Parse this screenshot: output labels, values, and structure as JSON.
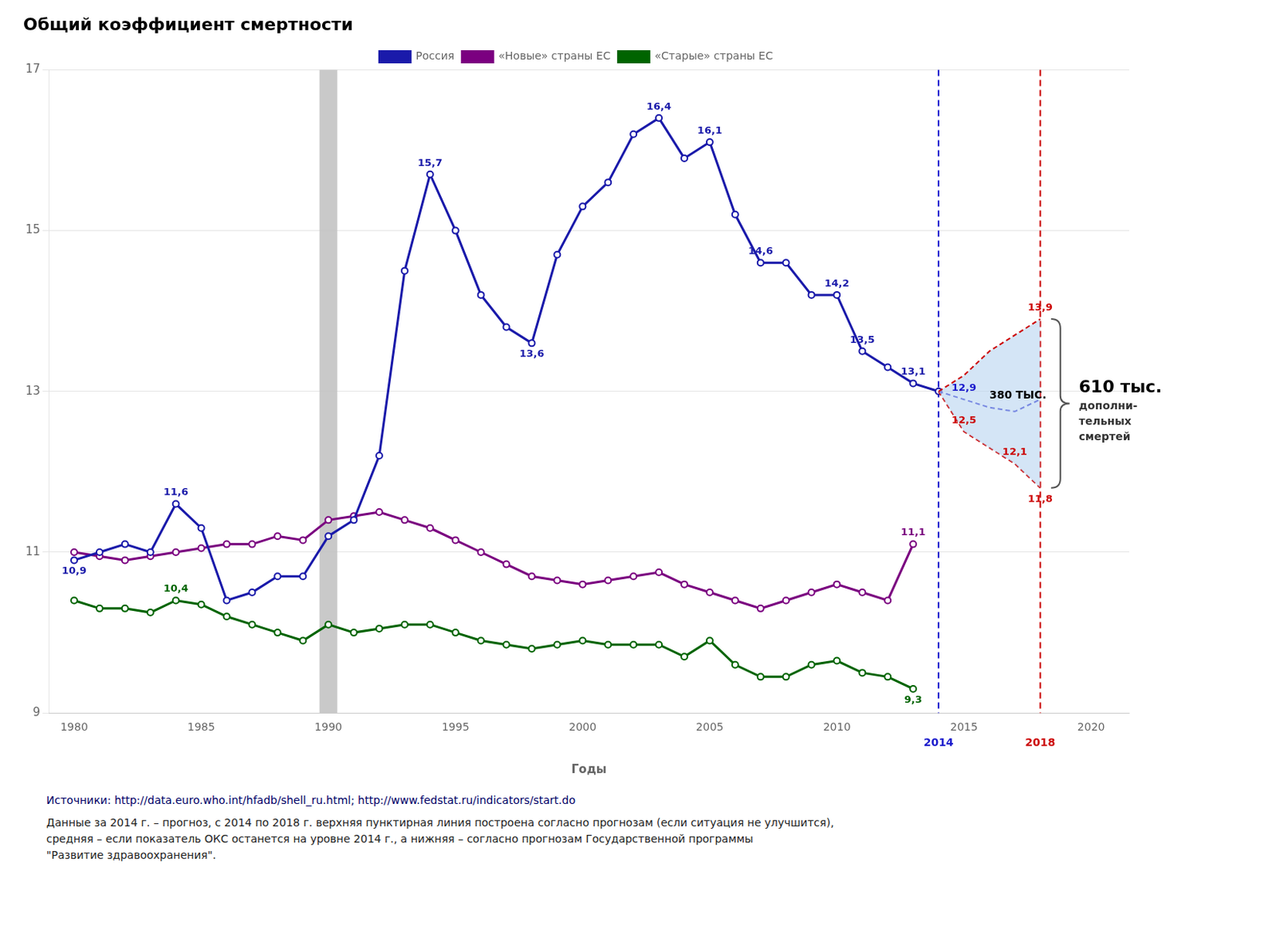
{
  "chart_data": {
    "type": "line",
    "title": "Общий коэффициент смертности",
    "x_label": "Годы",
    "xlim": [
      1979,
      2021.5
    ],
    "ylim": [
      9,
      17
    ],
    "xticks": [
      1980,
      1985,
      1990,
      1995,
      2000,
      2005,
      2010,
      2015,
      2020
    ],
    "yticks": [
      9,
      11,
      13,
      15,
      17
    ],
    "grid": "y",
    "legend": "top",
    "series": [
      {
        "name": "Россия",
        "color": "#1a1aaa",
        "marker": "circle",
        "line_style": "solid",
        "x": [
          1980,
          1981,
          1982,
          1983,
          1984,
          1985,
          1986,
          1987,
          1988,
          1989,
          1990,
          1991,
          1992,
          1993,
          1994,
          1995,
          1996,
          1997,
          1998,
          1999,
          2000,
          2001,
          2002,
          2003,
          2004,
          2005,
          2006,
          2007,
          2008,
          2009,
          2010,
          2011,
          2012,
          2013,
          2014
        ],
        "values": [
          10.9,
          11.0,
          11.1,
          11.0,
          11.6,
          11.3,
          10.4,
          10.5,
          10.7,
          10.7,
          11.2,
          11.4,
          12.2,
          14.5,
          15.7,
          15.0,
          14.2,
          13.8,
          13.6,
          14.7,
          15.3,
          15.6,
          16.2,
          16.4,
          15.9,
          16.1,
          15.2,
          14.6,
          14.6,
          14.2,
          14.2,
          13.5,
          13.3,
          13.1,
          13.0
        ],
        "value_labels": [
          "10,9",
          null,
          null,
          null,
          "11,6",
          null,
          null,
          null,
          null,
          null,
          null,
          null,
          null,
          null,
          "15,7",
          null,
          null,
          null,
          "13,6",
          null,
          null,
          null,
          null,
          "16,4",
          null,
          "16,1",
          null,
          "14,6",
          null,
          null,
          "14,2",
          "13,5",
          null,
          "13,1",
          null
        ]
      },
      {
        "name": "«Новые» страны ЕС",
        "color": "#7B0080",
        "marker": "circle",
        "line_style": "solid",
        "x": [
          1980,
          1981,
          1982,
          1983,
          1984,
          1985,
          1986,
          1987,
          1988,
          1989,
          1990,
          1991,
          1992,
          1993,
          1994,
          1995,
          1996,
          1997,
          1998,
          1999,
          2000,
          2001,
          2002,
          2003,
          2004,
          2005,
          2006,
          2007,
          2008,
          2009,
          2010,
          2011,
          2012,
          2013
        ],
        "values": [
          11.0,
          10.95,
          10.9,
          10.95,
          11.0,
          11.05,
          11.1,
          11.1,
          11.2,
          11.15,
          11.4,
          11.45,
          11.5,
          11.4,
          11.3,
          11.15,
          11.0,
          10.85,
          10.7,
          10.65,
          10.6,
          10.65,
          10.7,
          10.75,
          10.6,
          10.5,
          10.4,
          10.3,
          10.4,
          10.5,
          10.6,
          10.5,
          10.4,
          11.1
        ],
        "value_labels": [
          null,
          null,
          null,
          null,
          null,
          null,
          null,
          null,
          null,
          null,
          null,
          null,
          null,
          null,
          null,
          null,
          null,
          null,
          null,
          null,
          null,
          null,
          null,
          null,
          null,
          null,
          null,
          null,
          null,
          null,
          null,
          null,
          null,
          "11,1"
        ]
      },
      {
        "name": "«Старые» страны ЕС",
        "color": "#006400",
        "marker": "circle",
        "line_style": "solid",
        "x": [
          1980,
          1981,
          1982,
          1983,
          1984,
          1985,
          1986,
          1987,
          1988,
          1989,
          1990,
          1991,
          1992,
          1993,
          1994,
          1995,
          1996,
          1997,
          1998,
          1999,
          2000,
          2001,
          2002,
          2003,
          2004,
          2005,
          2006,
          2007,
          2008,
          2009,
          2010,
          2011,
          2012,
          2013
        ],
        "values": [
          10.4,
          10.3,
          10.3,
          10.25,
          10.4,
          10.35,
          10.2,
          10.1,
          10.0,
          9.9,
          10.1,
          10.0,
          10.05,
          10.1,
          10.1,
          10.0,
          9.9,
          9.85,
          9.8,
          9.85,
          9.9,
          9.85,
          9.85,
          9.85,
          9.7,
          9.9,
          9.6,
          9.45,
          9.45,
          9.6,
          9.65,
          9.5,
          9.45,
          9.3
        ],
        "value_labels": [
          null,
          null,
          null,
          null,
          "10,4",
          null,
          null,
          null,
          null,
          null,
          null,
          null,
          null,
          null,
          null,
          null,
          null,
          null,
          null,
          null,
          null,
          null,
          null,
          null,
          null,
          null,
          null,
          null,
          null,
          null,
          null,
          null,
          null,
          "9,3"
        ]
      },
      {
        "color": "#CC0000",
        "marker": "none",
        "line_style": "dashed",
        "x": [
          2014,
          2015,
          2016,
          2017,
          2018
        ],
        "values": [
          13.0,
          13.2,
          13.5,
          13.7,
          13.9
        ],
        "value_labels": [
          null,
          null,
          null,
          null,
          "13,9"
        ]
      },
      {
        "color": "#1a1aCC",
        "marker": "none",
        "line_style": "dashed",
        "x": [
          2014,
          2015,
          2016,
          2017,
          2018
        ],
        "values": [
          13.0,
          12.9,
          12.8,
          12.75,
          12.9
        ],
        "value_labels": [
          null,
          "12,9",
          null,
          null,
          null
        ]
      },
      {
        "color": "#CC0000",
        "marker": "none",
        "line_style": "dashed",
        "x": [
          2014,
          2015,
          2016,
          2017,
          2018
        ],
        "values": [
          13.0,
          12.5,
          12.3,
          12.1,
          11.8
        ],
        "value_labels": [
          null,
          "12,5",
          null,
          "12,1",
          "11,8"
        ]
      }
    ],
    "reference_lines": [
      {
        "x": 1990,
        "color": "#c0c0c0",
        "line_style": "solid"
      },
      {
        "x": 2014,
        "label": "2014",
        "color": "#1a1aCC",
        "line_style": "dashed"
      },
      {
        "x": 2018,
        "label": "2018",
        "color": "#CC0000",
        "line_style": "dashed"
      }
    ],
    "annotations": [
      {
        "text": "380 ТЫС.",
        "x": 2016,
        "y": 12.95
      }
    ],
    "side_note": [
      "610 тыс.",
      "дополни-",
      "тельных",
      "смертей"
    ],
    "source": "Источники: http://data.euro.who.int/hfadb/shell_ru.html; http://www.fedstat.ru/indicators/start.do",
    "note": "Данные за 2014 г. – прогноз, с 2014 по 2018 г. верхняя пунктирная линия построена согласно прогнозам (если ситуация не улучшится),\nсредняя – если показатель ОКС останется на уровне 2014 г., а  нижняя – согласно прогнозам Государственной программы\n\"Развитие здравоохранения\"."
  }
}
